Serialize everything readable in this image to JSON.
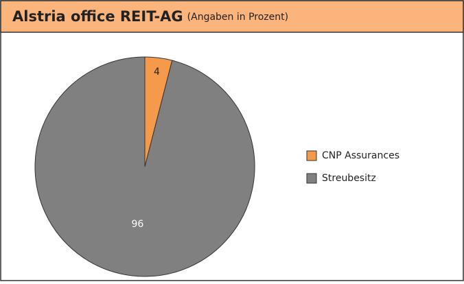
{
  "chart_data": {
    "type": "pie",
    "title": "Alstria office REIT-AG",
    "subtitle": "(Angaben in Prozent)",
    "categories": [
      "CNP Assurances",
      "Streubesitz"
    ],
    "values": [
      4,
      96
    ],
    "colors": [
      "#f59a4a",
      "#808080"
    ],
    "legend": "right"
  }
}
